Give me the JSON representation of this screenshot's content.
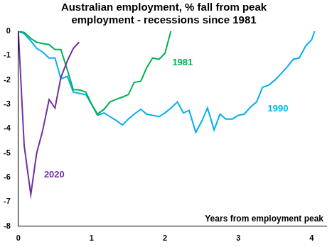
{
  "chart_data": {
    "type": "line",
    "title": [
      "Australian employment, % fall from peak",
      "employment - recessions since 1981"
    ],
    "x_label": "Years from employment peak",
    "xlim": [
      0,
      4.2
    ],
    "xticks": [
      0,
      1,
      2,
      3,
      4
    ],
    "ylim": [
      -8,
      0
    ],
    "yticks": [
      -8,
      -7,
      -6,
      -5,
      -4,
      -3,
      -2,
      -1,
      0
    ],
    "grid": false,
    "series": [
      {
        "name": "2020",
        "color": "#7030a0",
        "x": [
          0,
          0.08,
          0.17,
          0.25,
          0.33,
          0.42,
          0.5,
          0.58,
          0.67,
          0.75,
          0.83
        ],
        "values": [
          0,
          -4.7,
          -6.7,
          -5.0,
          -4.1,
          -2.8,
          -3.15,
          -1.9,
          -1.2,
          -0.7,
          -0.45
        ]
      },
      {
        "name": "1981",
        "color": "#00b050",
        "x": [
          0,
          0.08,
          0.17,
          0.25,
          0.33,
          0.42,
          0.5,
          0.58,
          0.67,
          0.75,
          0.83,
          0.92,
          1.0,
          1.08,
          1.17,
          1.25,
          1.33,
          1.42,
          1.5,
          1.58,
          1.67,
          1.75,
          1.83,
          1.92,
          2.0,
          2.08
        ],
        "values": [
          0,
          -0.05,
          -0.3,
          -0.45,
          -0.5,
          -0.55,
          -0.75,
          -0.75,
          -1.6,
          -2.4,
          -2.4,
          -2.5,
          -3.0,
          -3.4,
          -3.2,
          -2.9,
          -2.8,
          -2.7,
          -2.6,
          -2.1,
          -2.05,
          -1.5,
          -1.1,
          -1.15,
          -0.9,
          0
        ]
      },
      {
        "name": "1990",
        "color": "#00b0f0",
        "x": [
          0,
          0.08,
          0.17,
          0.25,
          0.33,
          0.42,
          0.5,
          0.58,
          0.67,
          0.75,
          0.83,
          0.92,
          1.0,
          1.08,
          1.17,
          1.25,
          1.33,
          1.42,
          1.5,
          1.58,
          1.67,
          1.75,
          1.83,
          1.92,
          2.0,
          2.08,
          2.17,
          2.25,
          2.33,
          2.42,
          2.5,
          2.58,
          2.67,
          2.75,
          2.83,
          2.92,
          3.0,
          3.08,
          3.17,
          3.25,
          3.33,
          3.42,
          3.5,
          3.58,
          3.67,
          3.75,
          3.83,
          3.92,
          4.0,
          4.04
        ],
        "values": [
          0,
          -0.1,
          -0.4,
          -0.7,
          -0.85,
          -1.1,
          -1.1,
          -1.95,
          -1.85,
          -2.5,
          -2.55,
          -2.6,
          -3.0,
          -3.45,
          -3.35,
          -3.5,
          -3.65,
          -3.85,
          -3.6,
          -3.4,
          -3.2,
          -3.4,
          -3.45,
          -3.5,
          -3.35,
          -3.15,
          -2.9,
          -3.35,
          -3.25,
          -4.15,
          -3.7,
          -3.15,
          -4.05,
          -3.4,
          -3.6,
          -3.6,
          -3.45,
          -3.4,
          -3.1,
          -2.9,
          -2.3,
          -2.2,
          -2.0,
          -1.75,
          -1.45,
          -1.15,
          -1.1,
          -0.6,
          -0.35,
          0
        ]
      }
    ],
    "annotations": [
      {
        "text": "2020",
        "x": 0.35,
        "y": -5.9
      },
      {
        "text": "1981",
        "x": 2.1,
        "y": -1.3
      },
      {
        "text": "1990",
        "x": 3.4,
        "y": -3.2
      }
    ]
  }
}
